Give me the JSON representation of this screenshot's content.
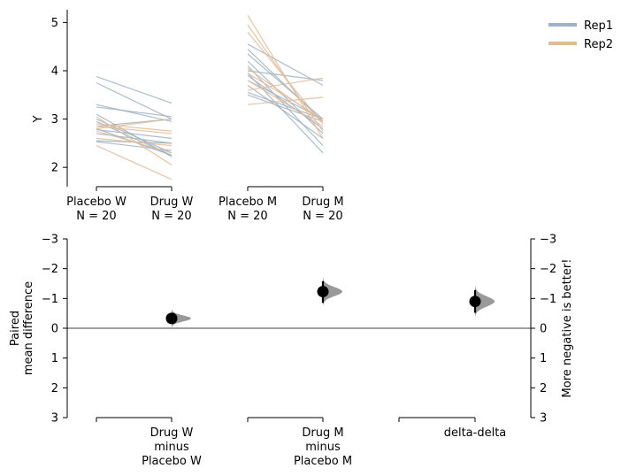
{
  "chart_data": [
    {
      "type": "line",
      "subtype": "paired-slopegraph",
      "title": "",
      "ylabel": "Y",
      "ylim": [
        1.6,
        5.3
      ],
      "yticks": [
        2,
        3,
        4,
        5
      ],
      "groups": [
        {
          "pair": [
            "Placebo W",
            "Drug W"
          ],
          "labels": [
            {
              "name": "Placebo W",
              "n": "N = 20"
            },
            {
              "name": "Drug W",
              "n": "N = 20"
            }
          ],
          "series": [
            {
              "name": "Rep1",
              "pairs": [
                [
                  3.88,
                  3.33
                ],
                [
                  3.75,
                  3.0
                ],
                [
                  3.3,
                  2.95
                ],
                [
                  3.25,
                  3.05
                ],
                [
                  3.1,
                  2.22
                ],
                [
                  3.0,
                  2.3
                ],
                [
                  2.95,
                  2.25
                ],
                [
                  2.85,
                  3.0
                ],
                [
                  2.8,
                  2.25
                ],
                [
                  2.78,
                  2.6
                ],
                [
                  2.7,
                  2.5
                ],
                [
                  2.55,
                  2.5
                ],
                [
                  2.53,
                  2.35
                ]
              ]
            },
            {
              "name": "Rep2",
              "pairs": [
                [
                  3.05,
                  2.05
                ],
                [
                  2.9,
                  2.75
                ],
                [
                  2.85,
                  2.7
                ],
                [
                  2.8,
                  3.0
                ],
                [
                  2.75,
                  2.3
                ],
                [
                  2.6,
                  2.45
                ],
                [
                  2.45,
                  1.75
                ]
              ]
            }
          ]
        },
        {
          "pair": [
            "Placebo M",
            "Drug M"
          ],
          "labels": [
            {
              "name": "Placebo M",
              "n": "N = 20"
            },
            {
              "name": "Drug M",
              "n": "N = 20"
            }
          ],
          "series": [
            {
              "name": "Rep1",
              "pairs": [
                [
                  4.45,
                  2.95
                ],
                [
                  4.35,
                  3.0
                ],
                [
                  4.2,
                  2.7
                ],
                [
                  4.1,
                  2.45
                ],
                [
                  4.0,
                  3.8
                ],
                [
                  3.95,
                  2.3
                ],
                [
                  3.9,
                  2.8
                ],
                [
                  3.8,
                  3.0
                ],
                [
                  3.7,
                  2.6
                ],
                [
                  3.55,
                  3.0
                ],
                [
                  3.5,
                  2.95
                ],
                [
                  4.55,
                  3.7
                ]
              ]
            },
            {
              "name": "Rep2",
              "pairs": [
                [
                  5.15,
                  2.6
                ],
                [
                  4.95,
                  2.75
                ],
                [
                  4.8,
                  2.9
                ],
                [
                  4.05,
                  2.95
                ],
                [
                  3.95,
                  3.0
                ],
                [
                  3.8,
                  2.85
                ],
                [
                  3.6,
                  3.85
                ],
                [
                  3.3,
                  3.45
                ]
              ]
            }
          ]
        }
      ],
      "legend": {
        "placement": "top-right",
        "entries": [
          {
            "name": "Rep1",
            "color": "#9fb1c2"
          },
          {
            "name": "Rep2",
            "color": "#e2bb96"
          }
        ]
      },
      "line_colors": {
        "Rep1": "#9fb1c2",
        "Rep2": "#e2bb96"
      }
    },
    {
      "type": "scatter",
      "subtype": "bootstrap-estimation",
      "ylabel_left": [
        "Paired",
        "mean difference"
      ],
      "ylabel_right": "More negative is better!",
      "ylim": [
        3,
        -3
      ],
      "yticks": [
        -3,
        -2,
        -1,
        0,
        1,
        2,
        3
      ],
      "ytick_labels": [
        "−3",
        "−2",
        "−1",
        "0",
        "1",
        "2",
        "3"
      ],
      "y_inverted": true,
      "reference_line": 0,
      "categories": [
        {
          "label": [
            "Drug W",
            "minus",
            "Placebo W"
          ],
          "mean": -0.33,
          "ci": [
            -0.47,
            -0.18
          ],
          "distribution": {
            "center": -0.33,
            "spread": 0.1
          }
        },
        {
          "label": [
            "Drug M",
            "minus",
            "Placebo M"
          ],
          "mean": -1.23,
          "ci": [
            -1.58,
            -0.85
          ],
          "distribution": {
            "center": -1.23,
            "spread": 0.15
          }
        },
        {
          "label": [
            "delta-delta"
          ],
          "mean": -0.9,
          "ci": [
            -1.28,
            -0.52
          ],
          "distribution": {
            "center": -0.9,
            "spread": 0.17
          }
        }
      ],
      "point_color": "#000000",
      "distribution_color": "#999999"
    }
  ]
}
